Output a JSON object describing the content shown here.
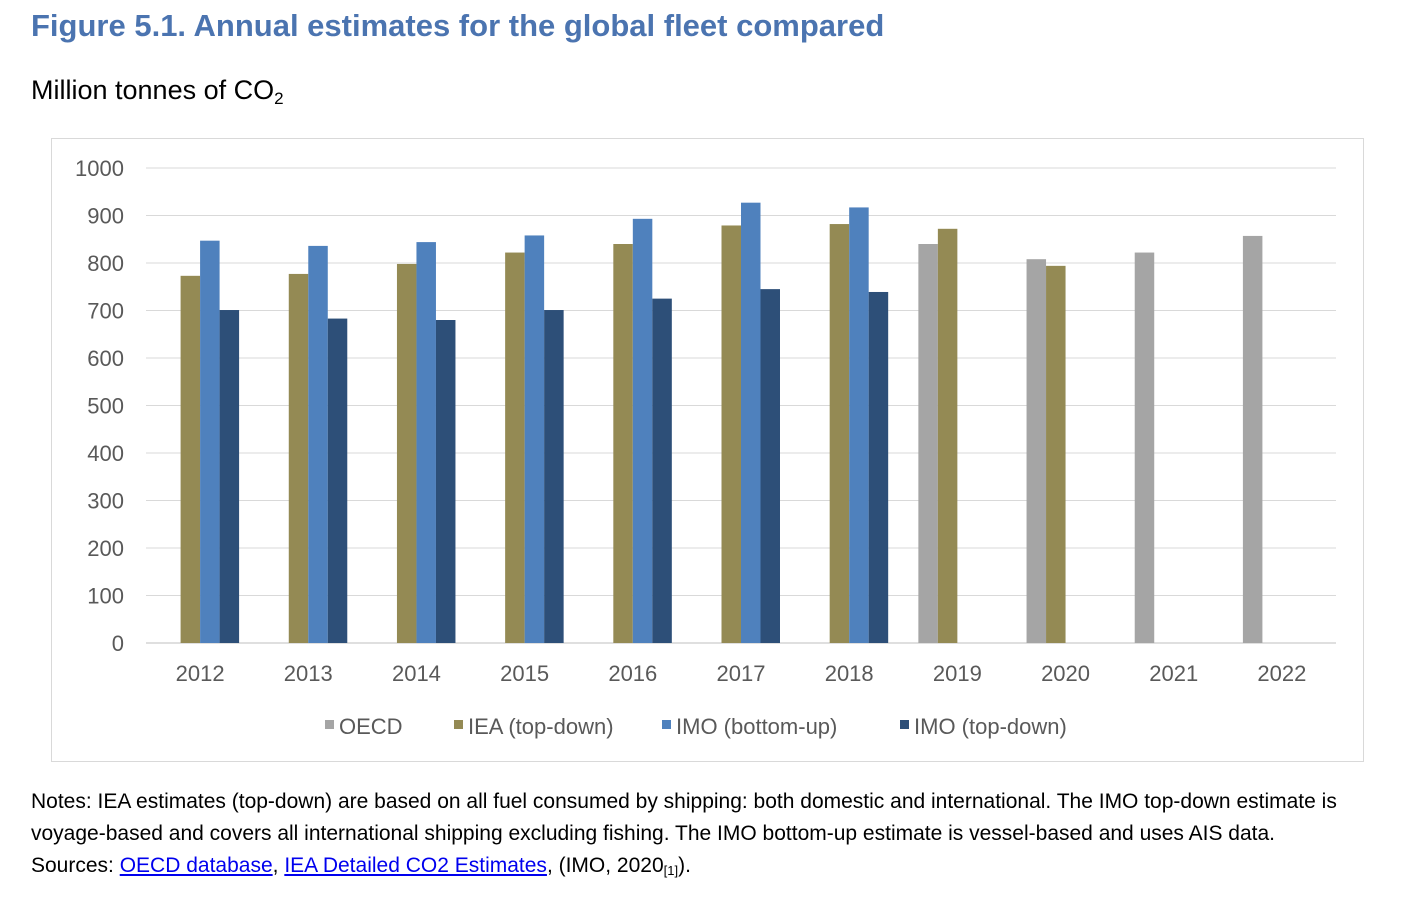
{
  "figure": {
    "title": "Figure 5.1. Annual estimates for the global fleet compared",
    "subtitle_main": "Million tonnes of CO",
    "subtitle_sub": "2"
  },
  "chart_data": {
    "type": "bar",
    "title": "",
    "xlabel": "",
    "ylabel": "",
    "ylim": [
      0,
      1000
    ],
    "yticks": [
      "0",
      "100",
      "200",
      "300",
      "400",
      "500",
      "600",
      "700",
      "800",
      "900",
      "1000"
    ],
    "grid": true,
    "legend_position": "bottom",
    "categories": [
      "2012",
      "2013",
      "2014",
      "2015",
      "2016",
      "2017",
      "2018",
      "2019",
      "2020",
      "2021",
      "2022"
    ],
    "series": [
      {
        "name": "OECD",
        "color": "#a5a5a5",
        "values": [
          null,
          null,
          null,
          null,
          null,
          null,
          null,
          840,
          808,
          822,
          857
        ]
      },
      {
        "name": "IEA (top-down)",
        "color": "#948a54",
        "values": [
          773,
          777,
          798,
          822,
          840,
          879,
          882,
          872,
          794,
          null,
          null
        ]
      },
      {
        "name": "IMO (bottom-up)",
        "color": "#4f81bd",
        "values": [
          847,
          836,
          844,
          858,
          893,
          927,
          917,
          null,
          null,
          null,
          null
        ]
      },
      {
        "name": "IMO (top-down)",
        "color": "#2d4f78",
        "values": [
          701,
          683,
          680,
          701,
          725,
          745,
          739,
          null,
          null,
          null,
          null
        ]
      }
    ]
  },
  "notes": {
    "line1": "Notes: IEA estimates (top-down) are based on all fuel consumed by shipping: both domestic and international. The IMO top-down estimate is",
    "line2": "voyage-based and covers all international shipping excluding fishing. The IMO bottom-up estimate is vessel-based and uses AIS data.",
    "sources_prefix": "Sources: ",
    "link1": "OECD database",
    "separator": ", ",
    "link2": "IEA Detailed CO2 Estimates",
    "sources_tail": ", (IMO, 2020",
    "ref": "[1]",
    "sources_end": ")."
  }
}
